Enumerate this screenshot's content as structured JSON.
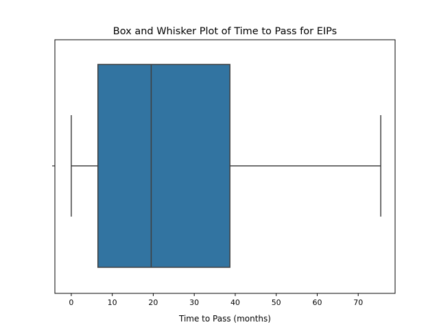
{
  "chart_data": {
    "type": "box",
    "title": "Box and Whisker Plot of Time to Pass for EIPs",
    "xlabel": "Time to Pass (months)",
    "ylabel": "",
    "xlim": [
      -4,
      79
    ],
    "xticks": [
      0,
      10,
      20,
      30,
      40,
      50,
      60,
      70
    ],
    "xtick_labels": [
      "0",
      "10",
      "20",
      "30",
      "40",
      "50",
      "60",
      "70"
    ],
    "grid": false,
    "box": {
      "whisker_low": 0,
      "q1": 6.5,
      "median": 19.5,
      "q3": 38.7,
      "whisker_high": 75.5
    },
    "box_color": "#3274a1",
    "line_color": "#3f3f3f"
  }
}
